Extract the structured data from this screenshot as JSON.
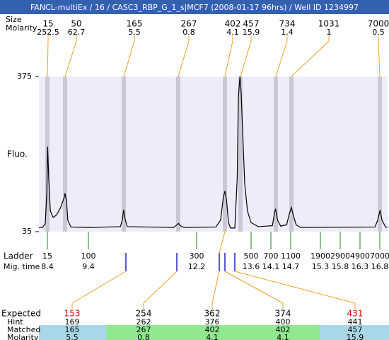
{
  "chart_data": {
    "type": "line",
    "title": "FANCL-multiEx / 16 / CASC3_RBP_G_1_s|MCF7 (2008-01-17 96hrs) / Well ID 1234997",
    "ylabel": "Fluo.",
    "ylim": [
      35,
      375
    ],
    "yticks": [
      35,
      375
    ],
    "xlim": [
      8.19,
      17.0
    ],
    "x": [
      8.19,
      8.28,
      8.35,
      8.39,
      8.41,
      8.44,
      8.48,
      8.55,
      8.64,
      8.74,
      8.83,
      8.85,
      8.89,
      8.92,
      9.0,
      9.53,
      10.25,
      10.3,
      10.33,
      10.37,
      10.42,
      11.59,
      11.68,
      11.72,
      11.76,
      11.86,
      12.66,
      12.78,
      12.85,
      12.89,
      12.93,
      12.98,
      13.03,
      13.14,
      13.2,
      13.23,
      13.27,
      13.3,
      13.34,
      13.39,
      13.46,
      13.55,
      13.73,
      14.09,
      14.14,
      14.17,
      14.22,
      14.3,
      14.45,
      14.51,
      14.57,
      14.62,
      14.69,
      14.8,
      16.68,
      16.75,
      16.81,
      16.86,
      16.95,
      17.0
    ],
    "series": [
      {
        "color": "#000000",
        "values": [
          44,
          44,
          52,
          120,
          221,
          150,
          80,
          66,
          72,
          88,
          110,
          119,
          100,
          60,
          45,
          44,
          46,
          62,
          83,
          62,
          46,
          44,
          50,
          53,
          48,
          44,
          45,
          60,
          110,
          124,
          105,
          55,
          43,
          43,
          150,
          330,
          375,
          340,
          250,
          140,
          80,
          55,
          46,
          48,
          75,
          85,
          60,
          47,
          50,
          72,
          88,
          70,
          50,
          44,
          45,
          60,
          82,
          60,
          45,
          44
        ]
      }
    ]
  },
  "peaks": {
    "size_label": "Size",
    "molarity_label": "Molarity",
    "sizes": [
      15,
      50,
      165,
      267,
      402,
      457,
      734,
      1031,
      7000
    ],
    "molarities": [
      252.5,
      62.7,
      5.5,
      0.8,
      4.1,
      15.9,
      1.4,
      1,
      0.5
    ]
  },
  "ladder": {
    "label": "Ladder",
    "time_label": "Mig. time",
    "sizes": [
      15,
      100,
      300,
      500,
      700,
      1100,
      1900,
      2900,
      4900,
      7000
    ],
    "times": [
      8.4,
      9.4,
      12.2,
      13.6,
      14.1,
      14.7,
      15.3,
      15.8,
      16.3,
      16.8
    ]
  },
  "table": {
    "labels": [
      "Expected",
      "Hint",
      "Matched",
      "Molarity"
    ],
    "expected": [
      153,
      254,
      362,
      374,
      431
    ],
    "expected_colors": [
      "#e00000",
      "#000000",
      "#000000",
      "#000000",
      "#e00000"
    ],
    "hint": [
      169,
      262,
      376,
      400,
      441
    ],
    "matched": [
      165,
      267,
      402,
      402,
      457
    ],
    "molarity": [
      5.5,
      0.8,
      4.1,
      4.1,
      15.9
    ]
  }
}
